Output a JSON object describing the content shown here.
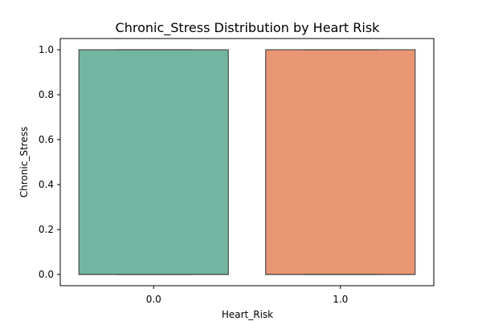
{
  "chart_data": {
    "type": "box",
    "title": "Chronic_Stress Distribution by Heart Risk",
    "xlabel": "Heart_Risk",
    "ylabel": "Chronic_Stress",
    "categories": [
      "0.0",
      "1.0"
    ],
    "ylim": [
      -0.05,
      1.05
    ],
    "yticks": [
      0.0,
      0.2,
      0.4,
      0.6,
      0.8,
      1.0
    ],
    "ytick_labels": [
      "0.0",
      "0.2",
      "0.4",
      "0.6",
      "0.8",
      "1.0"
    ],
    "grid": false,
    "boxes": [
      {
        "category": "0.0",
        "min": 0,
        "q1": 0,
        "median": 0,
        "q3": 1,
        "max": 1,
        "color": "#72b6a1"
      },
      {
        "category": "1.0",
        "min": 0,
        "q1": 0,
        "median": 0,
        "q3": 1,
        "max": 1,
        "color": "#e99675"
      }
    ],
    "edge_color": "#4d4d4d"
  }
}
